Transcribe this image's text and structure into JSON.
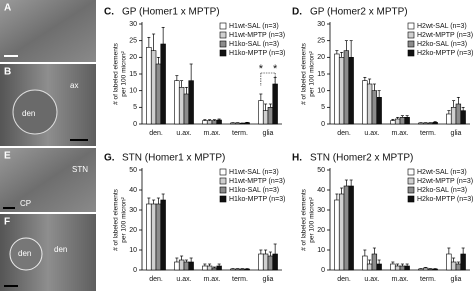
{
  "micrographs": [
    {
      "labels": [
        "A"
      ]
    },
    {
      "labels": [
        "B",
        "ax",
        "den"
      ]
    },
    {
      "labels": [
        "E",
        "STN",
        "CP"
      ]
    },
    {
      "labels": [
        "F",
        "den",
        "den"
      ]
    }
  ],
  "chart_data": [
    {
      "type": "bar",
      "label": "C.",
      "title": "GP (Homer1 x MPTP)",
      "ylabel": [
        "# of labeled elements",
        "per 100 micron²"
      ],
      "categories": [
        "den.",
        "u.ax.",
        "m.ax.",
        "term.",
        "glia"
      ],
      "ylim": [
        0,
        30
      ],
      "yticks": [
        0,
        5,
        10,
        15,
        20,
        25,
        30
      ],
      "annotations": [
        "*",
        "*"
      ],
      "series": [
        {
          "name": "H1wt-SAL (n=3)",
          "color": "#ffffff",
          "values": [
            23,
            13,
            1,
            0.3,
            7
          ],
          "errors": [
            3,
            1.5,
            0.3,
            0.1,
            2
          ]
        },
        {
          "name": "H1wt-MPTP (n=3)",
          "color": "#d0d0d0",
          "values": [
            22,
            11,
            1,
            0.3,
            4
          ],
          "errors": [
            5,
            2,
            0.3,
            0.1,
            2
          ]
        },
        {
          "name": "H1ko-SAL (n=3)",
          "color": "#8c8c8c",
          "values": [
            18,
            9,
            1,
            0.2,
            5
          ],
          "errors": [
            2,
            2,
            0.3,
            0.1,
            1
          ]
        },
        {
          "name": "H1ko-MPTP (n=3)",
          "color": "#111111",
          "values": [
            24,
            13,
            1.2,
            0.4,
            12
          ],
          "errors": [
            5,
            5,
            0.3,
            0.1,
            2
          ]
        }
      ]
    },
    {
      "type": "bar",
      "label": "D.",
      "title": "GP (Homer2 x MPTP)",
      "ylabel": [
        "# of labeled elements",
        "per 100 micron²"
      ],
      "categories": [
        "den.",
        "u.ax.",
        "m.ax.",
        "term.",
        "glia"
      ],
      "ylim": [
        0,
        30
      ],
      "yticks": [
        0,
        5,
        10,
        15,
        20,
        25,
        30
      ],
      "series": [
        {
          "name": "H2wt-SAL (n=3)",
          "color": "#ffffff",
          "values": [
            21,
            13,
            1,
            0.3,
            3
          ],
          "errors": [
            1,
            1,
            0.4,
            0.1,
            1
          ]
        },
        {
          "name": "H2wt-MPTP (n=3)",
          "color": "#d0d0d0",
          "values": [
            20,
            12,
            1.5,
            0.3,
            5
          ],
          "errors": [
            1.5,
            1.5,
            0.5,
            0.1,
            2
          ]
        },
        {
          "name": "H2ko-SAL (n=3)",
          "color": "#8c8c8c",
          "values": [
            22,
            10,
            2,
            0.3,
            6
          ],
          "errors": [
            3,
            2,
            0.5,
            0.1,
            2
          ]
        },
        {
          "name": "H2ko-MPTP (n=3)",
          "color": "#111111",
          "values": [
            20,
            8,
            2,
            0.5,
            4
          ],
          "errors": [
            5,
            2,
            0.5,
            0.2,
            1
          ]
        }
      ]
    },
    {
      "type": "bar",
      "label": "G.",
      "title": "STN (Homer1 x MPTP)",
      "ylabel": [
        "# of labeled elements",
        "per 100 micron²"
      ],
      "categories": [
        "den.",
        "u.ax.",
        "m.ax.",
        "term.",
        "glia"
      ],
      "ylim": [
        0,
        50
      ],
      "yticks": [
        0,
        10,
        20,
        30,
        40,
        50
      ],
      "series": [
        {
          "name": "H1wt-SAL (n=3)",
          "color": "#ffffff",
          "values": [
            33,
            4,
            2,
            0.5,
            8
          ],
          "errors": [
            3,
            2,
            1,
            0.2,
            2
          ]
        },
        {
          "name": "H1wt-MPTP (n=3)",
          "color": "#d0d0d0",
          "values": [
            33,
            5,
            2,
            0.5,
            8
          ],
          "errors": [
            2,
            2,
            1,
            0.2,
            2
          ]
        },
        {
          "name": "H1ko-SAL (n=3)",
          "color": "#8c8c8c",
          "values": [
            33,
            4,
            1,
            0.5,
            7
          ],
          "errors": [
            3,
            1,
            0.5,
            0.2,
            2
          ]
        },
        {
          "name": "H1ko-MPTP (n=3)",
          "color": "#111111",
          "values": [
            35,
            4,
            2,
            0.5,
            8
          ],
          "errors": [
            3,
            2,
            1,
            0.2,
            5
          ]
        }
      ]
    },
    {
      "type": "bar",
      "label": "H.",
      "title": "STN (Homer2 x MPTP)",
      "ylabel": [
        "# of labeled elements",
        "per 100 micron²"
      ],
      "categories": [
        "den.",
        "u.ax.",
        "m.ax.",
        "term.",
        "glia"
      ],
      "ylim": [
        0,
        50
      ],
      "yticks": [
        0,
        10,
        20,
        30,
        40,
        50
      ],
      "series": [
        {
          "name": "H2wt-SAL (n=3)",
          "color": "#ffffff",
          "values": [
            35,
            7,
            3,
            0.5,
            8
          ],
          "errors": [
            3,
            3,
            1,
            0.2,
            3
          ]
        },
        {
          "name": "H2wt-MPTP (n=3)",
          "color": "#d0d0d0",
          "values": [
            38,
            3,
            2,
            1,
            4
          ],
          "errors": [
            3,
            2,
            1,
            0.3,
            2
          ]
        },
        {
          "name": "H2ko-SAL (n=3)",
          "color": "#8c8c8c",
          "values": [
            42,
            8,
            2,
            0.5,
            3
          ],
          "errors": [
            3,
            3,
            1,
            0.2,
            1
          ]
        },
        {
          "name": "H2ko-MPTP (n=3)",
          "color": "#111111",
          "values": [
            42,
            3,
            2,
            0.5,
            8
          ],
          "errors": [
            3,
            2,
            1,
            0.2,
            3
          ]
        }
      ]
    }
  ]
}
